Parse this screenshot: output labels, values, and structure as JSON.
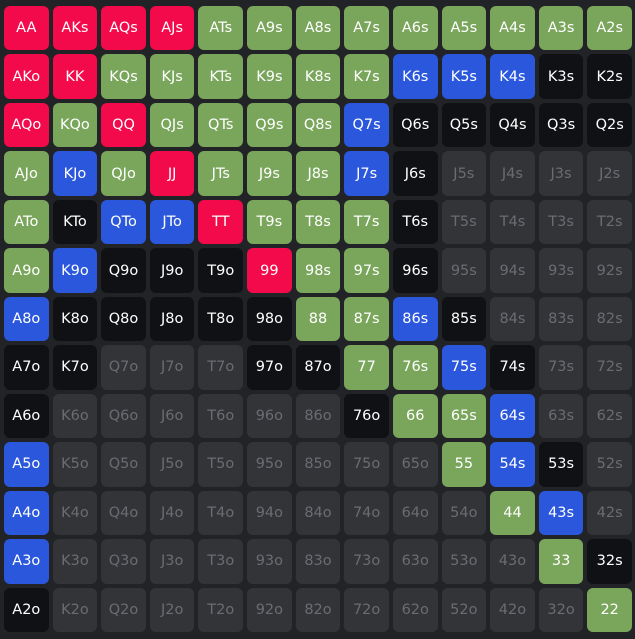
{
  "palette": {
    "red": "#f20a4b",
    "green": "#7aa65c",
    "blue": "#2a57db",
    "black": "#0f1114",
    "none": "#333438"
  },
  "ranks": [
    "A",
    "K",
    "Q",
    "J",
    "T",
    "9",
    "8",
    "7",
    "6",
    "5",
    "4",
    "3",
    "2"
  ],
  "grid": {
    "rows": [
      {
        "hands": [
          "AA",
          "AKs",
          "AQs",
          "AJs",
          "ATs",
          "A9s",
          "A8s",
          "A7s",
          "A6s",
          "A5s",
          "A4s",
          "A3s",
          "A2s"
        ],
        "colors": [
          "red",
          "red",
          "red",
          "red",
          "green",
          "green",
          "green",
          "green",
          "green",
          "green",
          "green",
          "green",
          "green"
        ]
      },
      {
        "hands": [
          "AKo",
          "KK",
          "KQs",
          "KJs",
          "KTs",
          "K9s",
          "K8s",
          "K7s",
          "K6s",
          "K5s",
          "K4s",
          "K3s",
          "K2s"
        ],
        "colors": [
          "red",
          "red",
          "green",
          "green",
          "green",
          "green",
          "green",
          "green",
          "blue",
          "blue",
          "blue",
          "black",
          "black"
        ]
      },
      {
        "hands": [
          "AQo",
          "KQo",
          "QQ",
          "QJs",
          "QTs",
          "Q9s",
          "Q8s",
          "Q7s",
          "Q6s",
          "Q5s",
          "Q4s",
          "Q3s",
          "Q2s"
        ],
        "colors": [
          "red",
          "green",
          "red",
          "green",
          "green",
          "green",
          "green",
          "blue",
          "black",
          "black",
          "black",
          "black",
          "black"
        ]
      },
      {
        "hands": [
          "AJo",
          "KJo",
          "QJo",
          "JJ",
          "JTs",
          "J9s",
          "J8s",
          "J7s",
          "J6s",
          "J5s",
          "J4s",
          "J3s",
          "J2s"
        ],
        "colors": [
          "green",
          "blue",
          "green",
          "red",
          "green",
          "green",
          "green",
          "blue",
          "black",
          "none",
          "none",
          "none",
          "none"
        ]
      },
      {
        "hands": [
          "ATo",
          "KTo",
          "QTo",
          "JTo",
          "TT",
          "T9s",
          "T8s",
          "T7s",
          "T6s",
          "T5s",
          "T4s",
          "T3s",
          "T2s"
        ],
        "colors": [
          "green",
          "black",
          "blue",
          "blue",
          "red",
          "green",
          "green",
          "green",
          "black",
          "none",
          "none",
          "none",
          "none"
        ]
      },
      {
        "hands": [
          "A9o",
          "K9o",
          "Q9o",
          "J9o",
          "T9o",
          "99",
          "98s",
          "97s",
          "96s",
          "95s",
          "94s",
          "93s",
          "92s"
        ],
        "colors": [
          "green",
          "blue",
          "black",
          "black",
          "black",
          "red",
          "green",
          "green",
          "black",
          "none",
          "none",
          "none",
          "none"
        ]
      },
      {
        "hands": [
          "A8o",
          "K8o",
          "Q8o",
          "J8o",
          "T8o",
          "98o",
          "88",
          "87s",
          "86s",
          "85s",
          "84s",
          "83s",
          "82s"
        ],
        "colors": [
          "blue",
          "black",
          "black",
          "black",
          "black",
          "black",
          "green",
          "green",
          "blue",
          "black",
          "none",
          "none",
          "none"
        ]
      },
      {
        "hands": [
          "A7o",
          "K7o",
          "Q7o",
          "J7o",
          "T7o",
          "97o",
          "87o",
          "77",
          "76s",
          "75s",
          "74s",
          "73s",
          "72s"
        ],
        "colors": [
          "black",
          "black",
          "none",
          "none",
          "none",
          "black",
          "black",
          "green",
          "green",
          "blue",
          "black",
          "none",
          "none"
        ]
      },
      {
        "hands": [
          "A6o",
          "K6o",
          "Q6o",
          "J6o",
          "T6o",
          "96o",
          "86o",
          "76o",
          "66",
          "65s",
          "64s",
          "63s",
          "62s"
        ],
        "colors": [
          "black",
          "none",
          "none",
          "none",
          "none",
          "none",
          "none",
          "black",
          "green",
          "green",
          "blue",
          "none",
          "none"
        ]
      },
      {
        "hands": [
          "A5o",
          "K5o",
          "Q5o",
          "J5o",
          "T5o",
          "95o",
          "85o",
          "75o",
          "65o",
          "55",
          "54s",
          "53s",
          "52s"
        ],
        "colors": [
          "blue",
          "none",
          "none",
          "none",
          "none",
          "none",
          "none",
          "none",
          "none",
          "green",
          "blue",
          "black",
          "none"
        ]
      },
      {
        "hands": [
          "A4o",
          "K4o",
          "Q4o",
          "J4o",
          "T4o",
          "94o",
          "84o",
          "74o",
          "64o",
          "54o",
          "44",
          "43s",
          "42s"
        ],
        "colors": [
          "blue",
          "none",
          "none",
          "none",
          "none",
          "none",
          "none",
          "none",
          "none",
          "none",
          "green",
          "blue",
          "none"
        ]
      },
      {
        "hands": [
          "A3o",
          "K3o",
          "Q3o",
          "J3o",
          "T3o",
          "93o",
          "83o",
          "73o",
          "63o",
          "53o",
          "43o",
          "33",
          "32s"
        ],
        "colors": [
          "blue",
          "none",
          "none",
          "none",
          "none",
          "none",
          "none",
          "none",
          "none",
          "none",
          "none",
          "green",
          "black"
        ]
      },
      {
        "hands": [
          "A2o",
          "K2o",
          "Q2o",
          "J2o",
          "T2o",
          "92o",
          "82o",
          "72o",
          "62o",
          "52o",
          "42o",
          "32o",
          "22"
        ],
        "colors": [
          "black",
          "none",
          "none",
          "none",
          "none",
          "none",
          "none",
          "none",
          "none",
          "none",
          "none",
          "none",
          "green"
        ]
      }
    ]
  }
}
